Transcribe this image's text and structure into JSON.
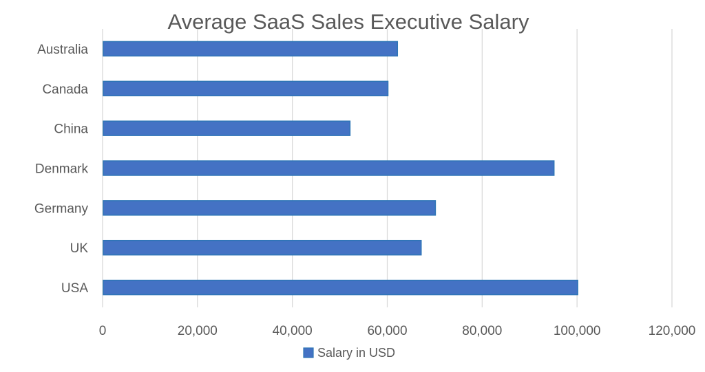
{
  "chart_data": {
    "type": "bar",
    "orientation": "horizontal",
    "title": "Average SaaS Sales Executive Salary",
    "categories": [
      "Australia",
      "Canada",
      "China",
      "Denmark",
      "Germany",
      "UK",
      "USA"
    ],
    "series": [
      {
        "name": "Salary in USD",
        "values": [
          62000,
          60000,
          52000,
          95000,
          70000,
          67000,
          100000
        ],
        "color": "#4472C4"
      }
    ],
    "xlim": [
      0,
      120000
    ],
    "xticks": [
      0,
      20000,
      40000,
      60000,
      80000,
      100000,
      120000
    ],
    "xtick_labels": [
      "0",
      "20,000",
      "40,000",
      "60,000",
      "80,000",
      "100,000",
      "120,000"
    ],
    "xlabel": "",
    "ylabel": "",
    "grid": "vertical",
    "legend": "bottom",
    "bar_edge_color": "#2E75B6",
    "grid_color": "#D9D9D9"
  }
}
